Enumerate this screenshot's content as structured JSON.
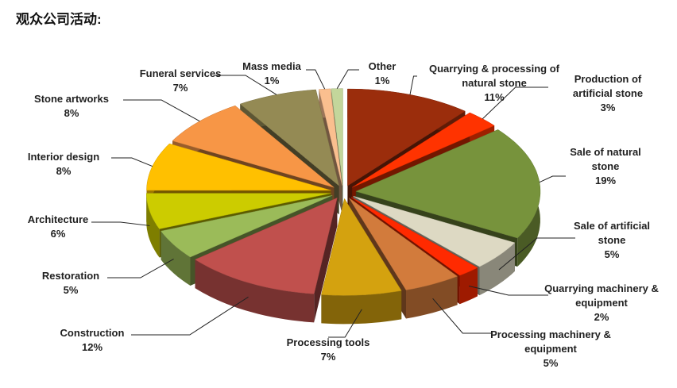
{
  "title": "观众公司活动:",
  "chart_data": {
    "type": "pie3d",
    "categories": [
      "Quarrying & processing of natural stone",
      "Production of artificial stone",
      "Sale of natural stone",
      "Sale of artificial stone",
      "Quarrying machinery & equipment",
      "Processing machinery & equipment",
      "Processing tools",
      "Construction",
      "Restoration",
      "Architecture",
      "Interior design",
      "Stone artworks",
      "Funeral services",
      "Mass media",
      "Other"
    ],
    "values": [
      11,
      3,
      19,
      5,
      2,
      5,
      7,
      12,
      5,
      6,
      8,
      8,
      7,
      1,
      1
    ],
    "value_labels": [
      "11%",
      "3%",
      "19%",
      "5%",
      "2%",
      "5%",
      "7%",
      "12%",
      "5%",
      "6%",
      "8%",
      "8%",
      "7%",
      "1%",
      "1%"
    ],
    "colors": [
      "#9b2d0c",
      "#ff3300",
      "#77933c",
      "#ddd9c3",
      "#ff2a00",
      "#d27b3c",
      "#d4a20f",
      "#c0504d",
      "#9bbb59",
      "#cccc00",
      "#ffc000",
      "#f79646",
      "#948a54",
      "#fabf8f",
      "#c3d69b"
    ]
  }
}
